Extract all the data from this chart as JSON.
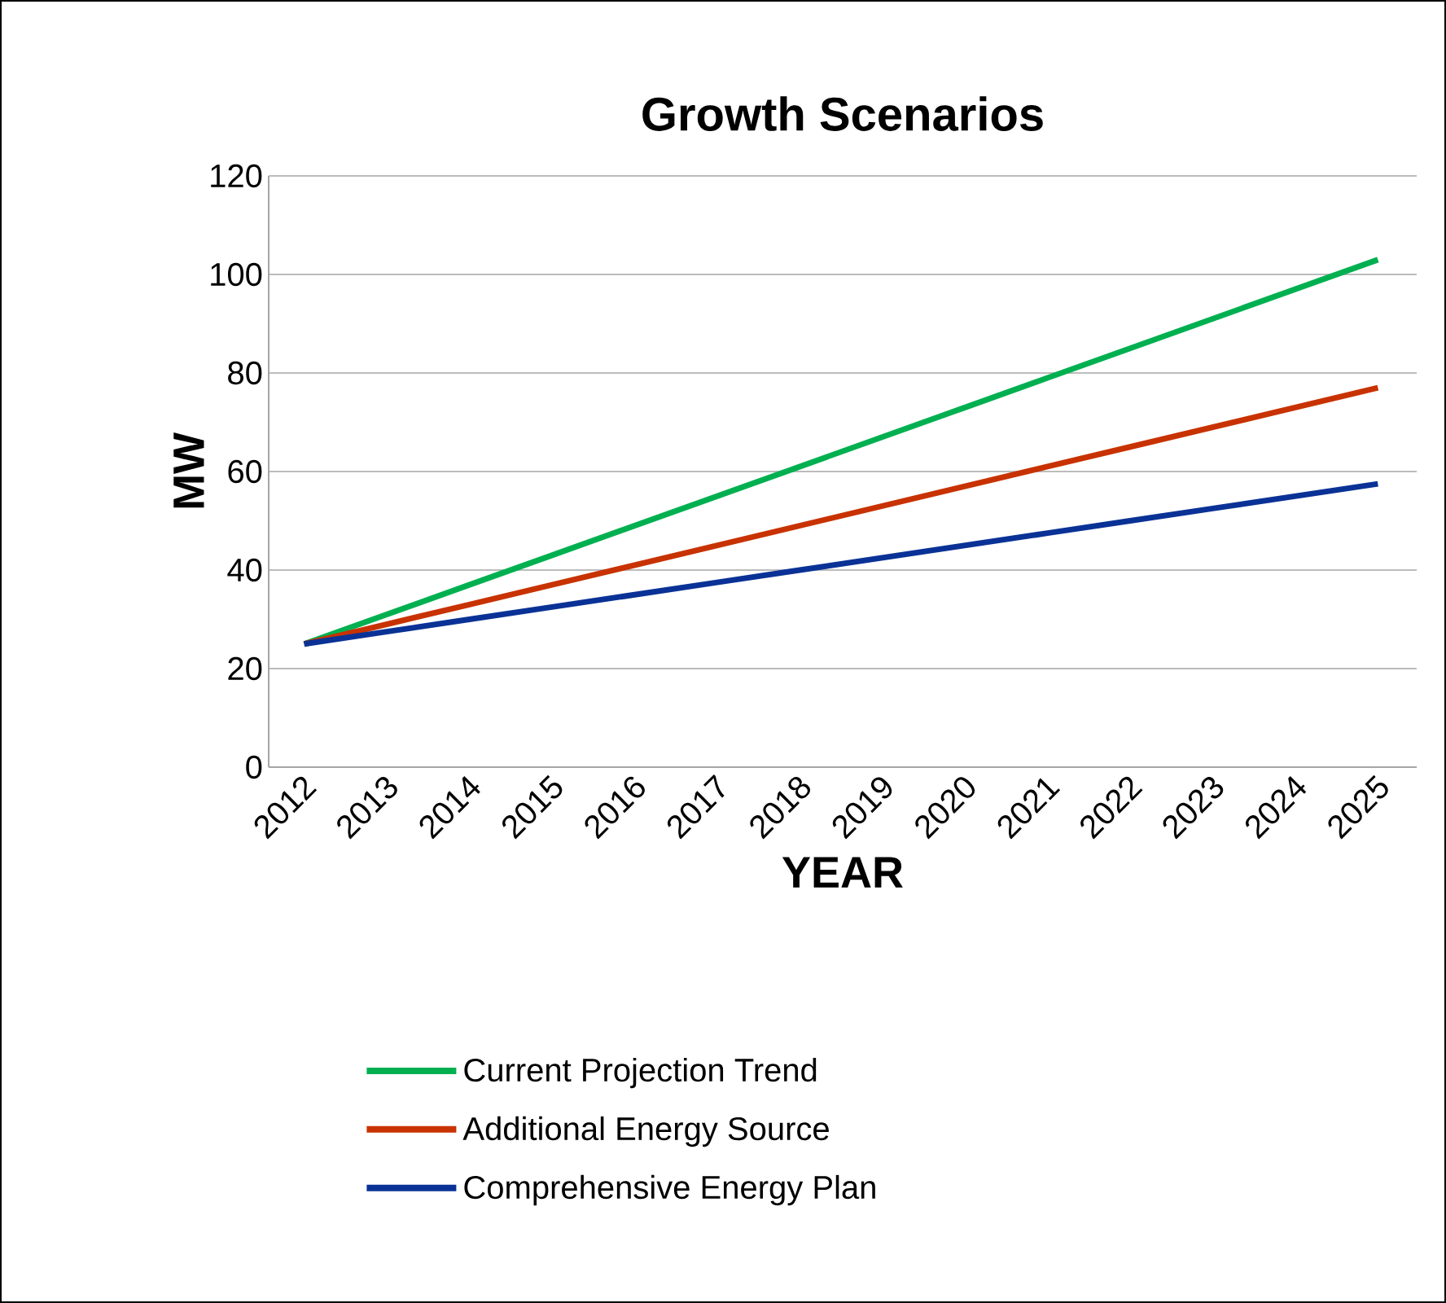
{
  "chart_data": {
    "type": "line",
    "title": "Growth Scenarios",
    "xlabel": "YEAR",
    "ylabel": "MW",
    "categories": [
      "2012",
      "2013",
      "2014",
      "2015",
      "2016",
      "2017",
      "2018",
      "2019",
      "2020",
      "2021",
      "2022",
      "2023",
      "2024",
      "2025"
    ],
    "series": [
      {
        "name": "Current Projection Trend",
        "color": "#00b050",
        "values": [
          25,
          31,
          37,
          43,
          49,
          55,
          61,
          67,
          73,
          79,
          85,
          91,
          97,
          103
        ]
      },
      {
        "name": "Additional Energy Source",
        "color": "#c83200",
        "values": [
          25,
          29,
          33,
          37,
          41,
          45,
          49,
          53,
          57,
          61,
          65,
          69,
          73,
          77
        ]
      },
      {
        "name": "Comprehensive Energy Plan",
        "color": "#0a3296",
        "values": [
          25,
          27.5,
          30,
          32.5,
          35,
          37.5,
          40,
          42.5,
          45,
          47.5,
          50,
          52.5,
          55,
          57.5
        ]
      }
    ],
    "ylim": [
      0,
      120
    ],
    "yticks": [
      0,
      20,
      40,
      60,
      80,
      100,
      120
    ],
    "grid": "y",
    "legend": "bottom",
    "marker": "none",
    "line_style": "solid"
  }
}
